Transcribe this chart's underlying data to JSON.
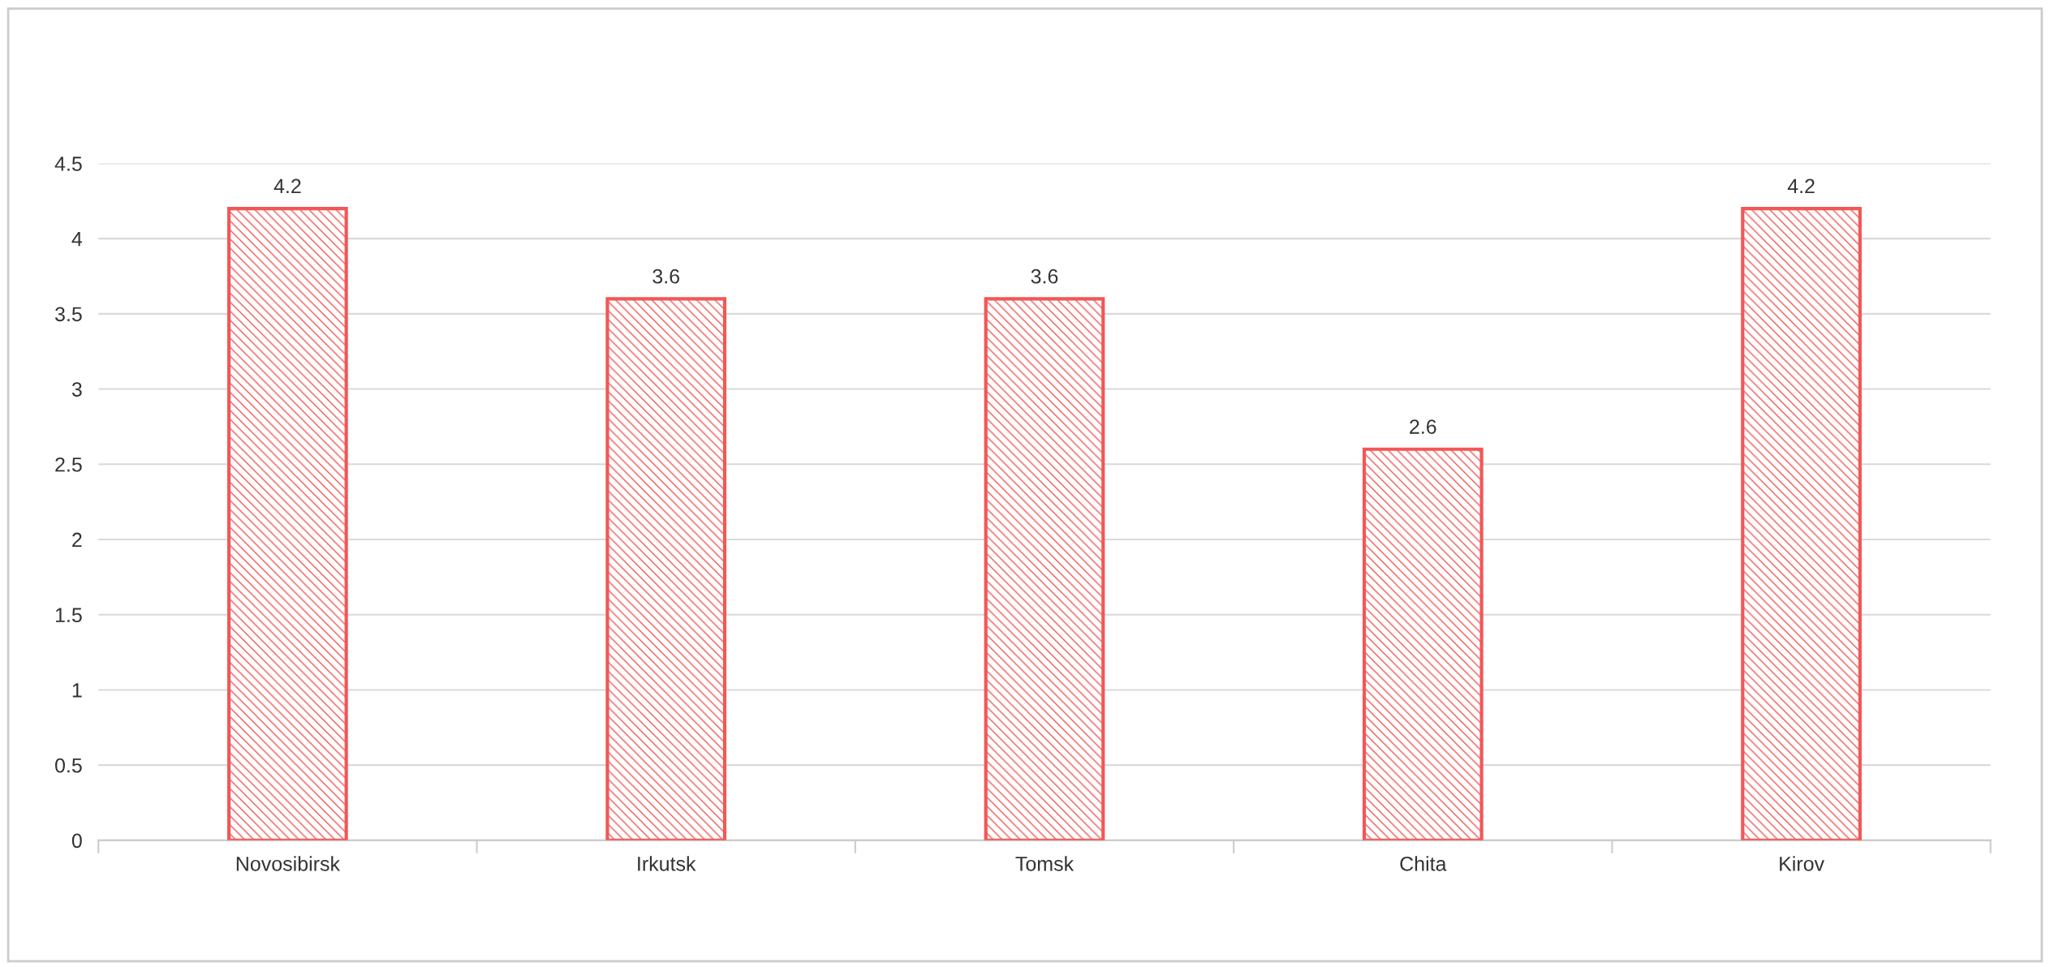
{
  "chart_data": {
    "type": "bar",
    "categories": [
      "Novosibirsk",
      "Irkutsk",
      "Tomsk",
      "Chita",
      "Kirov"
    ],
    "values": [
      4.2,
      3.6,
      3.6,
      2.6,
      4.2
    ],
    "color": "#f25757",
    "ylim": [
      0,
      4.5
    ],
    "yticks": [
      0,
      0.5,
      1,
      1.5,
      2,
      2.5,
      3,
      3.5,
      4,
      4.5
    ],
    "grid": "y",
    "data_labels": true
  }
}
